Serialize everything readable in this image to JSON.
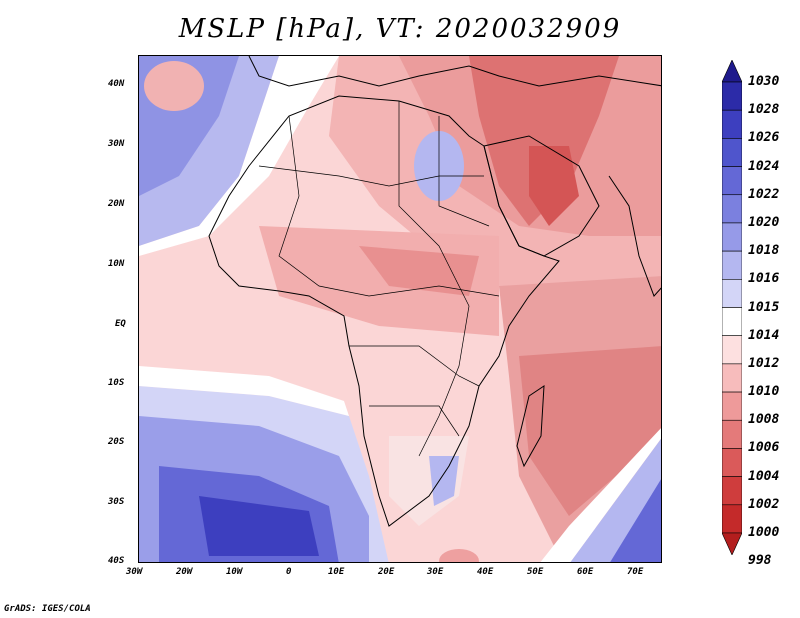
{
  "title": "MSLP [hPa], VT: 2020032909",
  "credit": "GrADS: IGES/COLA",
  "lat_labels": [
    "40N",
    "30N",
    "20N",
    "10N",
    "EQ",
    "10S",
    "20S",
    "30S",
    "40S"
  ],
  "lon_labels": [
    "30W",
    "20W",
    "10W",
    "0",
    "10E",
    "20E",
    "30E",
    "40E",
    "50E",
    "60E",
    "70E"
  ],
  "colorbar": {
    "levels": [
      "1030",
      "1028",
      "1026",
      "1024",
      "1022",
      "1020",
      "1018",
      "1016",
      "1015",
      "1014",
      "1012",
      "1010",
      "1008",
      "1006",
      "1004",
      "1002",
      "1000",
      "998"
    ],
    "colors": [
      "#1f1a8c",
      "#2c2ba8",
      "#3d3fbf",
      "#4f55cc",
      "#6468d6",
      "#7b80df",
      "#969ae8",
      "#b4b7f0",
      "#d3d5f7",
      "#ffffff",
      "#fde0e0",
      "#f7bcbc",
      "#ee9a9a",
      "#e47a7a",
      "#da5a5a",
      "#cf3d3d",
      "#c42a2a",
      "#b31e1e"
    ]
  },
  "map": {
    "region": "Africa and surrounding oceans",
    "extent": {
      "lon": [
        -30,
        75
      ],
      "lat": [
        -40,
        45
      ]
    }
  }
}
